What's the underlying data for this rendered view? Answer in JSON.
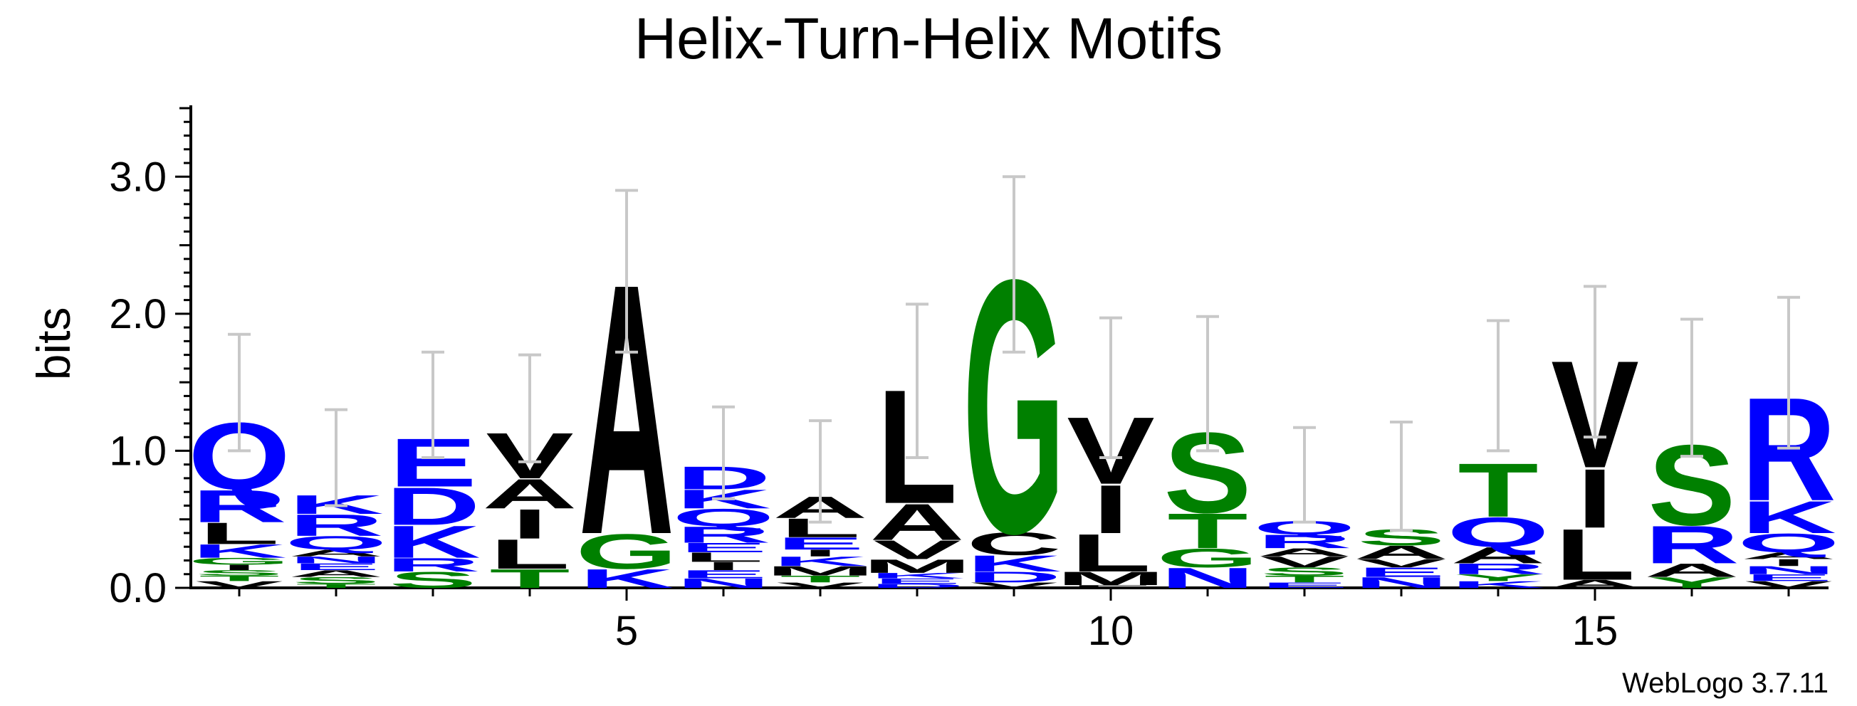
{
  "chart_data": {
    "type": "sequence-logo",
    "title": "Helix-Turn-Helix Motifs",
    "ylabel": "bits",
    "xlabel": "",
    "ylim": [
      0,
      3.5
    ],
    "y_ticks": [
      "0.0",
      "1.0",
      "2.0",
      "3.0"
    ],
    "x_ticks": [
      5,
      10,
      15
    ],
    "positions": [
      1,
      2,
      3,
      4,
      5,
      6,
      7,
      8,
      9,
      10,
      11,
      12,
      13,
      14,
      15,
      16,
      17
    ],
    "colors": {
      "acidic_basic_amide": "#0000ff",
      "hydrophobic": "#000000",
      "polar_small": "#008000"
    },
    "columns": [
      {
        "pos": 1,
        "total": 1.42,
        "error": [
          1.0,
          1.85
        ],
        "stack": [
          [
            "V",
            0.05
          ],
          [
            "T",
            0.04
          ],
          [
            "S",
            0.04
          ],
          [
            "I",
            0.04
          ],
          [
            "G",
            0.05
          ],
          [
            "K",
            0.1
          ],
          [
            "L",
            0.16
          ],
          [
            "R",
            0.24
          ],
          [
            "Q",
            0.5
          ]
        ]
      },
      {
        "pos": 2,
        "total": 1.0,
        "error": [
          0.6,
          1.3
        ],
        "stack": [
          [
            "T",
            0.03
          ],
          [
            "S",
            0.05
          ],
          [
            "A",
            0.05
          ],
          [
            "E",
            0.05
          ],
          [
            "N",
            0.05
          ],
          [
            "A",
            0.05
          ],
          [
            "Q",
            0.1
          ],
          [
            "R",
            0.16
          ],
          [
            "K",
            0.14
          ]
        ]
      },
      {
        "pos": 3,
        "total": 1.32,
        "error": [
          0.95,
          1.72
        ],
        "stack": [
          [
            "S",
            0.12
          ],
          [
            "R",
            0.1
          ],
          [
            "K",
            0.24
          ],
          [
            "D",
            0.28
          ],
          [
            "E",
            0.36
          ]
        ]
      },
      {
        "pos": 4,
        "total": 1.32,
        "error": [
          0.92,
          1.7
        ],
        "stack": [
          [
            "T",
            0.14
          ],
          [
            "L",
            0.22
          ],
          [
            "I",
            0.22
          ],
          [
            "A",
            0.22
          ],
          [
            "V",
            0.34
          ]
        ]
      },
      {
        "pos": 5,
        "total": 2.32,
        "error": [
          1.72,
          2.9
        ],
        "stack": [
          [
            "K",
            0.14
          ],
          [
            "G",
            0.26
          ],
          [
            "A",
            1.87
          ]
        ]
      },
      {
        "pos": 6,
        "total": 1.0,
        "error": [
          0.65,
          1.32
        ],
        "stack": [
          [
            "N",
            0.07
          ],
          [
            "E",
            0.06
          ],
          [
            "I",
            0.06
          ],
          [
            "L",
            0.07
          ],
          [
            "E",
            0.07
          ],
          [
            "R",
            0.12
          ],
          [
            "Q",
            0.13
          ],
          [
            "K",
            0.14
          ],
          [
            "D",
            0.17
          ]
        ]
      },
      {
        "pos": 7,
        "total": 0.86,
        "error": [
          0.48,
          1.22
        ],
        "stack": [
          [
            "V",
            0.04
          ],
          [
            "T",
            0.05
          ],
          [
            "M",
            0.07
          ],
          [
            "K",
            0.07
          ],
          [
            "I",
            0.05
          ],
          [
            "E",
            0.09
          ],
          [
            "L",
            0.14
          ],
          [
            "A",
            0.16
          ]
        ]
      },
      {
        "pos": 8,
        "total": 1.5,
        "error": [
          0.95,
          2.07
        ],
        "stack": [
          [
            "D",
            0.03
          ],
          [
            "E",
            0.04
          ],
          [
            "K",
            0.04
          ],
          [
            "M",
            0.1
          ],
          [
            "V",
            0.14
          ],
          [
            "A",
            0.27
          ],
          [
            "L",
            0.85
          ]
        ]
      },
      {
        "pos": 9,
        "total": 2.35,
        "error": [
          1.72,
          3.0
        ],
        "stack": [
          [
            "V",
            0.04
          ],
          [
            "D",
            0.08
          ],
          [
            "K",
            0.12
          ],
          [
            "C",
            0.17
          ],
          [
            "G",
            1.89
          ]
        ]
      },
      {
        "pos": 10,
        "total": 1.45,
        "error": [
          0.95,
          1.97
        ],
        "stack": [
          [
            "F",
            0.02
          ],
          [
            "M",
            0.1
          ],
          [
            "L",
            0.28
          ],
          [
            "I",
            0.36
          ],
          [
            "V",
            0.5
          ]
        ]
      },
      {
        "pos": 11,
        "total": 1.45,
        "error": [
          1.0,
          1.98
        ],
        "stack": [
          [
            "N",
            0.15
          ],
          [
            "G",
            0.14
          ],
          [
            "T",
            0.26
          ],
          [
            "S",
            0.6
          ]
        ]
      },
      {
        "pos": 12,
        "total": 0.82,
        "error": [
          0.48,
          1.17
        ],
        "stack": [
          [
            "E",
            0.04
          ],
          [
            "T",
            0.05
          ],
          [
            "S",
            0.06
          ],
          [
            "V",
            0.08
          ],
          [
            "A",
            0.06
          ],
          [
            "R",
            0.1
          ],
          [
            "Q",
            0.1
          ]
        ]
      },
      {
        "pos": 13,
        "total": 0.8,
        "error": [
          0.42,
          1.21
        ],
        "stack": [
          [
            "N",
            0.08
          ],
          [
            "E",
            0.07
          ],
          [
            "V",
            0.06
          ],
          [
            "A",
            0.1
          ],
          [
            "S",
            0.12
          ]
        ]
      },
      {
        "pos": 14,
        "total": 1.45,
        "error": [
          1.0,
          1.95
        ],
        "stack": [
          [
            "K",
            0.05
          ],
          [
            "Y",
            0.05
          ],
          [
            "R",
            0.08
          ],
          [
            "A",
            0.12
          ],
          [
            "Q",
            0.22
          ],
          [
            "T",
            0.4
          ]
        ]
      },
      {
        "pos": 15,
        "total": 1.72,
        "error": [
          1.1,
          2.2
        ],
        "stack": [
          [
            "A",
            0.06
          ],
          [
            "L",
            0.38
          ],
          [
            "I",
            0.44
          ],
          [
            "V",
            0.8
          ]
        ]
      },
      {
        "pos": 16,
        "total": 1.4,
        "error": [
          0.96,
          1.96
        ],
        "stack": [
          [
            "Y",
            0.08
          ],
          [
            "A",
            0.1
          ],
          [
            "R",
            0.28
          ],
          [
            "S",
            0.6
          ]
        ]
      },
      {
        "pos": 17,
        "total": 1.55,
        "error": [
          1.02,
          2.12
        ],
        "stack": [
          [
            "V",
            0.05
          ],
          [
            "E",
            0.05
          ],
          [
            "N",
            0.06
          ],
          [
            "I",
            0.05
          ],
          [
            "A",
            0.05
          ],
          [
            "Q",
            0.14
          ],
          [
            "K",
            0.24
          ],
          [
            "R",
            0.77
          ]
        ]
      }
    ]
  },
  "footer": {
    "credit": "WebLogo 3.7.11"
  }
}
